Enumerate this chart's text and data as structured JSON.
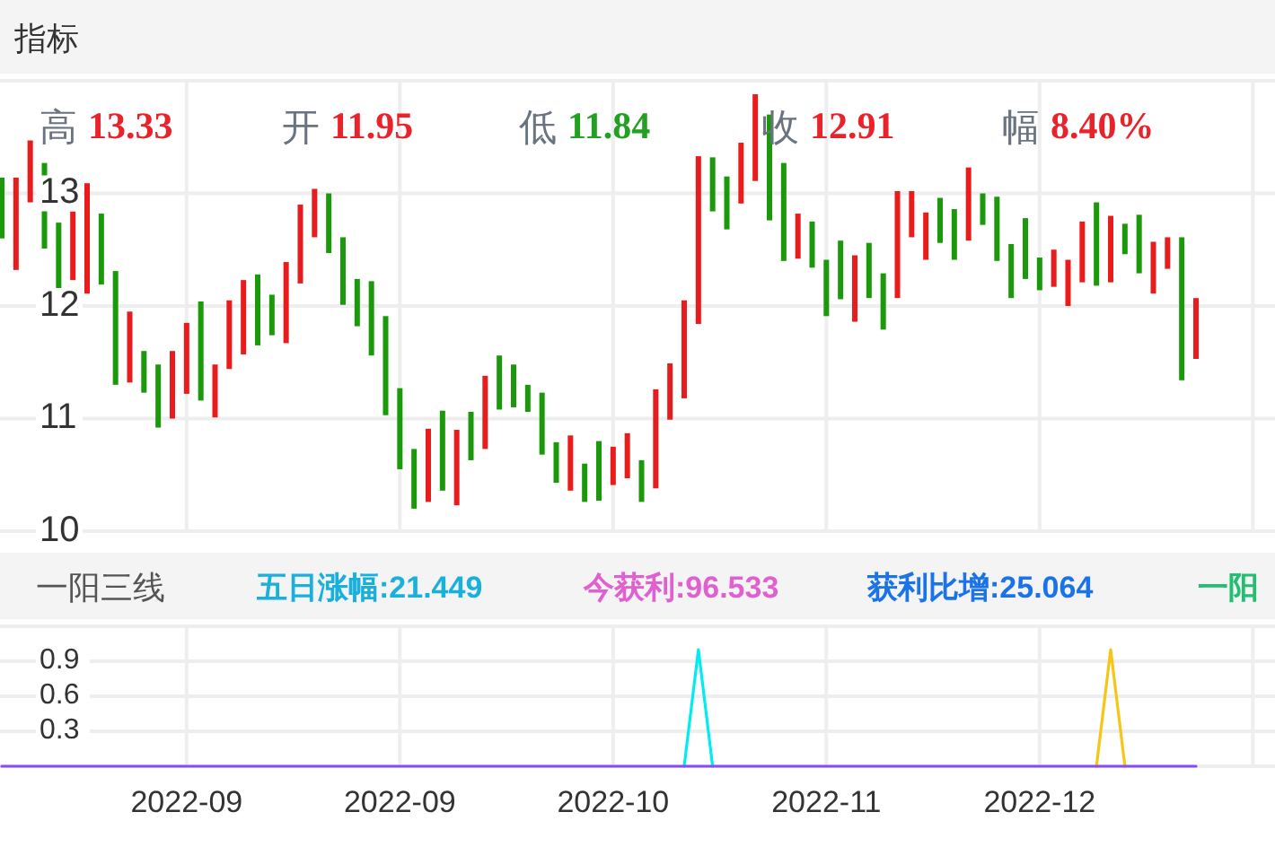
{
  "chart_data": [
    {
      "type": "bar",
      "title": "指标",
      "annotations": [
        "高 13.33",
        "开 11.95",
        "低 11.84",
        "收 12.91",
        "幅 8.40%"
      ],
      "categories": [
        null,
        null,
        null,
        null,
        null,
        null,
        null,
        null,
        null,
        null,
        null,
        null,
        null,
        "2022-09",
        null,
        null,
        null,
        null,
        null,
        null,
        null,
        null,
        null,
        null,
        null,
        null,
        null,
        null,
        "2022-09",
        null,
        null,
        null,
        null,
        null,
        null,
        null,
        null,
        null,
        null,
        null,
        null,
        null,
        null,
        "2022-10",
        null,
        null,
        null,
        null,
        null,
        null,
        null,
        null,
        null,
        null,
        null,
        null,
        null,
        null,
        "2022-11",
        null,
        null,
        null,
        null,
        null,
        null,
        null,
        null,
        null,
        null,
        null,
        null,
        null,
        null,
        "2022-12",
        null,
        null,
        null,
        null,
        null,
        null,
        null,
        null,
        null,
        null,
        null
      ],
      "base": [
        12.6,
        12.32,
        12.92,
        12.51,
        12.04,
        12.23,
        12.11,
        12.19,
        11.3,
        11.32,
        11.23,
        10.92,
        11.0,
        11.22,
        11.16,
        11.01,
        11.44,
        11.57,
        11.65,
        11.74,
        11.67,
        12.2,
        12.61,
        12.47,
        12.01,
        11.82,
        11.56,
        11.03,
        10.55,
        10.2,
        10.26,
        10.36,
        10.23,
        10.63,
        10.73,
        11.08,
        11.1,
        11.06,
        10.68,
        10.43,
        10.36,
        10.26,
        10.27,
        10.41,
        10.47,
        10.26,
        10.38,
        10.99,
        11.18,
        11.84,
        12.84,
        12.68,
        12.91,
        13.11,
        12.76,
        12.4,
        12.42,
        12.34,
        11.91,
        12.06,
        11.86,
        12.07,
        11.79,
        12.07,
        12.61,
        12.41,
        12.56,
        12.41,
        12.58,
        12.72,
        12.4,
        12.07,
        12.24,
        12.14,
        12.17,
        12.0,
        12.21,
        12.18,
        12.21,
        12.46,
        12.29,
        12.11,
        12.33,
        11.34,
        11.53
      ],
      "values": [
        0.54,
        0.82,
        0.55,
        0.76,
        0.7,
        0.61,
        0.98,
        0.63,
        1.01,
        0.63,
        0.37,
        0.56,
        0.6,
        0.63,
        0.88,
        0.47,
        0.61,
        0.66,
        0.63,
        0.36,
        0.72,
        0.7,
        0.43,
        0.53,
        0.6,
        0.42,
        0.66,
        0.88,
        0.72,
        0.53,
        0.65,
        0.71,
        0.67,
        0.43,
        0.65,
        0.48,
        0.38,
        0.24,
        0.55,
        0.36,
        0.49,
        0.34,
        0.53,
        0.34,
        0.4,
        0.37,
        0.88,
        0.5,
        0.87,
        1.49,
        0.48,
        0.47,
        0.54,
        0.77,
        0.94,
        0.87,
        0.4,
        0.41,
        0.5,
        0.52,
        0.59,
        0.49,
        0.5,
        0.95,
        0.41,
        0.42,
        0.4,
        0.45,
        0.65,
        0.28,
        0.57,
        0.48,
        0.54,
        0.29,
        0.33,
        0.41,
        0.54,
        0.74,
        0.59,
        0.27,
        0.52,
        0.46,
        0.28,
        1.27,
        0.54
      ],
      "colors": [
        "#1a9a0a",
        "#e81c1c",
        "#e81c1c",
        "#1a9a0a",
        "#1a9a0a",
        "#e81c1c",
        "#e81c1c",
        "#1a9a0a",
        "#1a9a0a",
        "#e81c1c",
        "#1a9a0a",
        "#1a9a0a",
        "#e81c1c",
        "#e81c1c",
        "#1a9a0a",
        "#e81c1c",
        "#e81c1c",
        "#e81c1c",
        "#1a9a0a",
        "#1a9a0a",
        "#e81c1c",
        "#e81c1c",
        "#e81c1c",
        "#1a9a0a",
        "#1a9a0a",
        "#1a9a0a",
        "#1a9a0a",
        "#1a9a0a",
        "#1a9a0a",
        "#1a9a0a",
        "#e81c1c",
        "#1a9a0a",
        "#e81c1c",
        "#1a9a0a",
        "#e81c1c",
        "#1a9a0a",
        "#1a9a0a",
        "#1a9a0a",
        "#1a9a0a",
        "#1a9a0a",
        "#e81c1c",
        "#1a9a0a",
        "#1a9a0a",
        "#e81c1c",
        "#e81c1c",
        "#1a9a0a",
        "#e81c1c",
        "#e81c1c",
        "#e81c1c",
        "#e81c1c",
        "#1a9a0a",
        "#1a9a0a",
        "#e81c1c",
        "#e81c1c",
        "#1a9a0a",
        "#1a9a0a",
        "#e81c1c",
        "#1a9a0a",
        "#1a9a0a",
        "#1a9a0a",
        "#e81c1c",
        "#1a9a0a",
        "#1a9a0a",
        "#e81c1c",
        "#e81c1c",
        "#e81c1c",
        "#1a9a0a",
        "#1a9a0a",
        "#e81c1c",
        "#1a9a0a",
        "#1a9a0a",
        "#1a9a0a",
        "#1a9a0a",
        "#1a9a0a",
        "#e81c1c",
        "#e81c1c",
        "#e81c1c",
        "#1a9a0a",
        "#e81c1c",
        "#1a9a0a",
        "#1a9a0a",
        "#e81c1c",
        "#e81c1c",
        "#1a9a0a",
        "#e81c1c"
      ],
      "ylim": [
        10,
        14
      ],
      "yticks": [
        10,
        11,
        12,
        13
      ],
      "grid": true,
      "tick_labels": "y"
    },
    {
      "type": "line",
      "title": "一阳三线",
      "annotations": [
        "五日涨幅:21.449",
        "今获利:96.533",
        "获利比增:25.064",
        "一阳"
      ],
      "categories": [
        null,
        null,
        null,
        null,
        null,
        null,
        null,
        null,
        null,
        null,
        null,
        null,
        null,
        "2022-09",
        null,
        null,
        null,
        null,
        null,
        null,
        null,
        null,
        null,
        null,
        null,
        null,
        null,
        null,
        "2022-09",
        null,
        null,
        null,
        null,
        null,
        null,
        null,
        null,
        null,
        null,
        null,
        null,
        null,
        null,
        "2022-10",
        null,
        null,
        null,
        null,
        null,
        null,
        null,
        null,
        null,
        null,
        null,
        null,
        null,
        null,
        "2022-11",
        null,
        null,
        null,
        null,
        null,
        null,
        null,
        null,
        null,
        null,
        null,
        null,
        null,
        null,
        "2022-12",
        null,
        null,
        null,
        null,
        null,
        null,
        null,
        null,
        null,
        null,
        null
      ],
      "series": [
        {
          "color": "#00ecf0",
          "values": [
            null,
            null,
            null,
            null,
            null,
            null,
            null,
            null,
            null,
            null,
            null,
            null,
            null,
            null,
            null,
            null,
            null,
            null,
            null,
            null,
            null,
            null,
            null,
            null,
            null,
            null,
            null,
            null,
            null,
            null,
            null,
            null,
            null,
            null,
            null,
            null,
            null,
            null,
            null,
            null,
            null,
            null,
            null,
            null,
            null,
            null,
            null,
            null,
            0,
            1,
            0,
            null,
            null,
            null,
            null,
            null,
            null,
            null,
            null,
            null,
            null,
            null,
            null,
            null,
            null,
            null,
            null,
            null,
            null,
            null,
            null,
            null,
            null,
            null,
            null,
            null,
            null,
            null,
            null,
            null,
            null,
            null,
            null,
            null,
            null
          ]
        },
        {
          "color": "#f5c518",
          "values": [
            null,
            null,
            null,
            null,
            null,
            null,
            null,
            null,
            null,
            null,
            null,
            null,
            null,
            null,
            null,
            null,
            null,
            null,
            null,
            null,
            null,
            null,
            null,
            null,
            null,
            null,
            null,
            null,
            null,
            null,
            null,
            null,
            null,
            null,
            null,
            null,
            null,
            null,
            null,
            null,
            null,
            null,
            null,
            null,
            null,
            null,
            null,
            null,
            null,
            null,
            null,
            null,
            null,
            null,
            null,
            null,
            null,
            null,
            null,
            null,
            null,
            null,
            null,
            null,
            null,
            null,
            null,
            null,
            null,
            null,
            null,
            null,
            null,
            null,
            null,
            null,
            null,
            0,
            1,
            0,
            null,
            null,
            null,
            null,
            null
          ]
        },
        {
          "color": "#8a4cf0",
          "values": [
            0,
            0,
            0,
            0,
            0,
            0,
            0,
            0,
            0,
            0,
            0,
            0,
            0,
            0,
            0,
            0,
            0,
            0,
            0,
            0,
            0,
            0,
            0,
            0,
            0,
            0,
            0,
            0,
            0,
            0,
            0,
            0,
            0,
            0,
            0,
            0,
            0,
            0,
            0,
            0,
            0,
            0,
            0,
            0,
            0,
            0,
            0,
            0,
            0,
            0,
            0,
            0,
            0,
            0,
            0,
            0,
            0,
            0,
            0,
            0,
            0,
            0,
            0,
            0,
            0,
            0,
            0,
            0,
            0,
            0,
            0,
            0,
            0,
            0,
            0,
            0,
            0,
            0,
            0,
            0,
            0,
            0,
            0,
            0,
            0
          ]
        }
      ],
      "ylim": [
        0,
        1.2
      ],
      "yticks": [
        0.3,
        0.6,
        0.9
      ],
      "grid": true
    }
  ]
}
